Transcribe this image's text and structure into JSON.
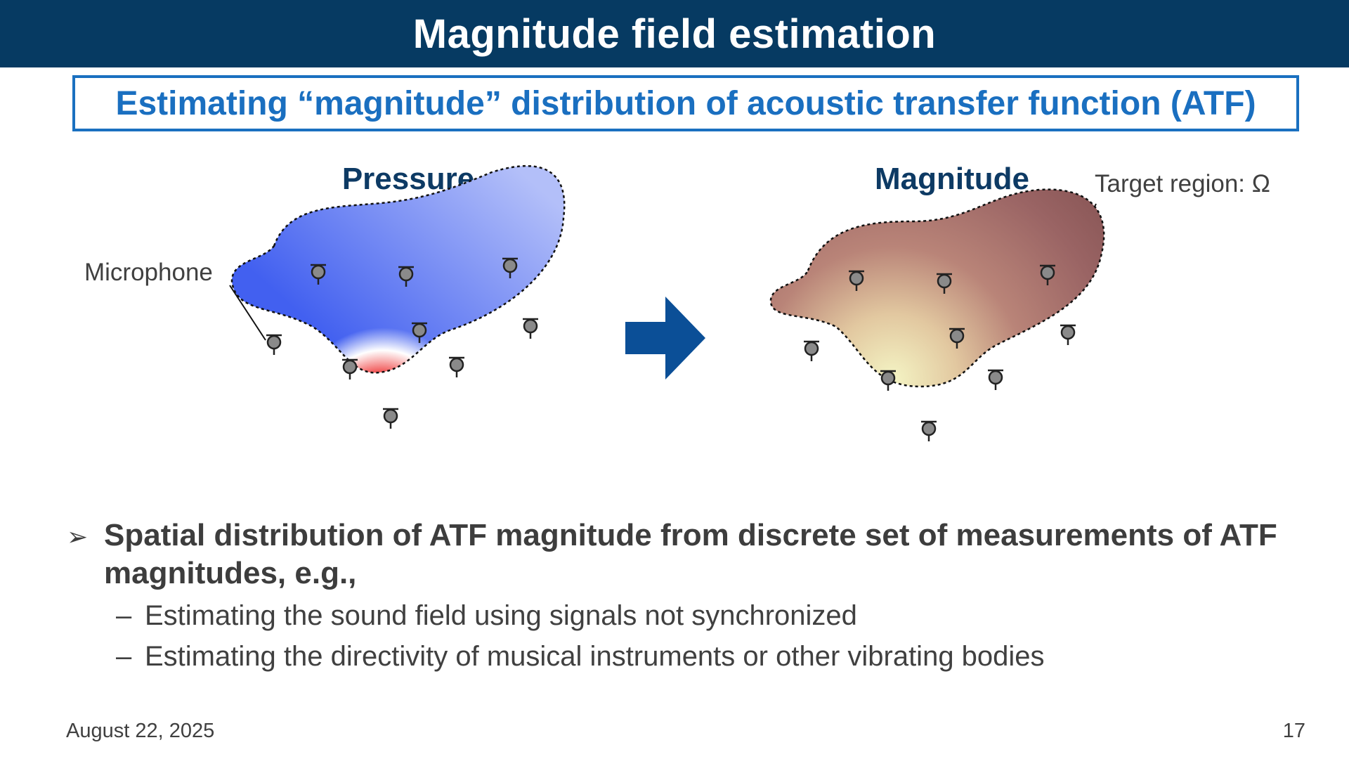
{
  "slide": {
    "title": "Magnitude field estimation",
    "subtitle": "Estimating “magnitude” distribution of acoustic transfer function (ATF)"
  },
  "diagram": {
    "left_label": "Pressure",
    "right_label": "Magnitude",
    "microphone_label": "Microphone",
    "target_region_label": "Target region: Ω",
    "colors": {
      "pressure_red": "#f04848",
      "pressure_blue": "#4060e8",
      "magnitude_dark": "#8e5a5a",
      "magnitude_light": "#f2f2c0",
      "arrow": "#0b4f97"
    }
  },
  "bullets": {
    "main_marker": "➢",
    "main_text": "Spatial distribution of ATF magnitude from discrete set of measurements of ATF magnitudes, e.g.,",
    "sub_marker": "–",
    "sub_items": [
      "Estimating the sound field using signals not synchronized",
      "Estimating the directivity of musical instruments or other vibrating bodies"
    ]
  },
  "footer": {
    "date": "August 22, 2025",
    "page_number": "17"
  }
}
